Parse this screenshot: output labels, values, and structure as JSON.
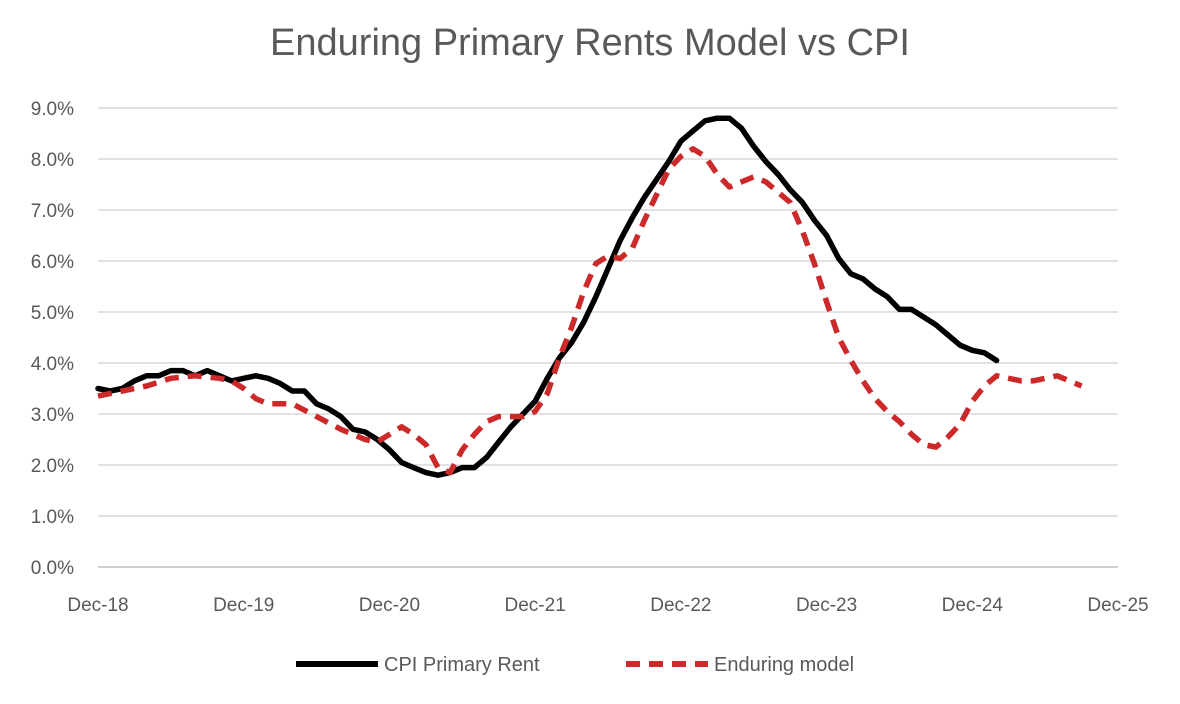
{
  "chart_data": {
    "type": "line",
    "title": "Enduring Primary Rents Model vs CPI",
    "xlabel": "",
    "ylabel": "",
    "x_tick_labels": [
      "Dec-18",
      "Dec-19",
      "Dec-20",
      "Dec-21",
      "Dec-22",
      "Dec-23",
      "Dec-24",
      "Dec-25"
    ],
    "y_tick_labels": [
      "0.0%",
      "1.0%",
      "2.0%",
      "3.0%",
      "4.0%",
      "5.0%",
      "6.0%",
      "7.0%",
      "8.0%",
      "9.0%"
    ],
    "xlim": [
      0,
      84
    ],
    "ylim": [
      0,
      9
    ],
    "grid": "horizontal",
    "legend_position": "bottom",
    "series": [
      {
        "name": "CPI Primary Rent",
        "color": "#000000",
        "style": "solid",
        "points": [
          [
            0,
            3.5
          ],
          [
            1,
            3.45
          ],
          [
            2,
            3.5
          ],
          [
            3,
            3.65
          ],
          [
            4,
            3.75
          ],
          [
            5,
            3.75
          ],
          [
            6,
            3.85
          ],
          [
            7,
            3.85
          ],
          [
            8,
            3.75
          ],
          [
            9,
            3.85
          ],
          [
            10,
            3.75
          ],
          [
            11,
            3.65
          ],
          [
            12,
            3.7
          ],
          [
            13,
            3.75
          ],
          [
            14,
            3.7
          ],
          [
            15,
            3.6
          ],
          [
            16,
            3.45
          ],
          [
            17,
            3.45
          ],
          [
            18,
            3.2
          ],
          [
            19,
            3.1
          ],
          [
            20,
            2.95
          ],
          [
            21,
            2.7
          ],
          [
            22,
            2.65
          ],
          [
            23,
            2.5
          ],
          [
            24,
            2.3
          ],
          [
            25,
            2.05
          ],
          [
            26,
            1.95
          ],
          [
            27,
            1.85
          ],
          [
            28,
            1.8
          ],
          [
            29,
            1.85
          ],
          [
            30,
            1.95
          ],
          [
            31,
            1.95
          ],
          [
            32,
            2.15
          ],
          [
            33,
            2.45
          ],
          [
            34,
            2.75
          ],
          [
            35,
            3.0
          ],
          [
            36,
            3.25
          ],
          [
            37,
            3.7
          ],
          [
            38,
            4.1
          ],
          [
            39,
            4.4
          ],
          [
            40,
            4.8
          ],
          [
            41,
            5.3
          ],
          [
            42,
            5.85
          ],
          [
            43,
            6.4
          ],
          [
            44,
            6.85
          ],
          [
            45,
            7.25
          ],
          [
            46,
            7.6
          ],
          [
            47,
            7.95
          ],
          [
            48,
            8.35
          ],
          [
            49,
            8.55
          ],
          [
            50,
            8.75
          ],
          [
            51,
            8.8
          ],
          [
            52,
            8.8
          ],
          [
            53,
            8.6
          ],
          [
            54,
            8.25
          ],
          [
            55,
            7.95
          ],
          [
            56,
            7.7
          ],
          [
            57,
            7.4
          ],
          [
            58,
            7.15
          ],
          [
            59,
            6.8
          ],
          [
            60,
            6.5
          ],
          [
            61,
            6.05
          ],
          [
            62,
            5.75
          ],
          [
            63,
            5.65
          ],
          [
            64,
            5.45
          ],
          [
            65,
            5.3
          ],
          [
            66,
            5.05
          ],
          [
            67,
            5.05
          ],
          [
            68,
            4.9
          ],
          [
            69,
            4.75
          ],
          [
            70,
            4.55
          ],
          [
            71,
            4.35
          ],
          [
            72,
            4.25
          ],
          [
            73,
            4.2
          ],
          [
            74,
            4.05
          ]
        ]
      },
      {
        "name": "Enduring model",
        "color": "#cc2a2a",
        "style": "dashed",
        "points": [
          [
            0,
            3.35
          ],
          [
            2,
            3.45
          ],
          [
            4,
            3.55
          ],
          [
            6,
            3.7
          ],
          [
            8,
            3.75
          ],
          [
            10,
            3.7
          ],
          [
            11,
            3.65
          ],
          [
            12,
            3.5
          ],
          [
            13,
            3.3
          ],
          [
            14,
            3.2
          ],
          [
            16,
            3.2
          ],
          [
            18,
            2.95
          ],
          [
            20,
            2.7
          ],
          [
            22,
            2.5
          ],
          [
            23,
            2.45
          ],
          [
            24,
            2.6
          ],
          [
            25,
            2.75
          ],
          [
            26,
            2.6
          ],
          [
            27,
            2.4
          ],
          [
            28,
            1.95
          ],
          [
            29,
            1.85
          ],
          [
            30,
            2.3
          ],
          [
            31,
            2.6
          ],
          [
            32,
            2.85
          ],
          [
            33,
            2.95
          ],
          [
            35,
            2.95
          ],
          [
            36,
            3.05
          ],
          [
            37,
            3.4
          ],
          [
            38,
            4.1
          ],
          [
            39,
            4.7
          ],
          [
            40,
            5.4
          ],
          [
            41,
            5.95
          ],
          [
            42,
            6.1
          ],
          [
            43,
            6.05
          ],
          [
            44,
            6.25
          ],
          [
            45,
            6.8
          ],
          [
            46,
            7.3
          ],
          [
            47,
            7.8
          ],
          [
            48,
            8.05
          ],
          [
            49,
            8.2
          ],
          [
            50,
            8.05
          ],
          [
            51,
            7.7
          ],
          [
            52,
            7.45
          ],
          [
            53,
            7.55
          ],
          [
            54,
            7.65
          ],
          [
            55,
            7.55
          ],
          [
            56,
            7.35
          ],
          [
            57,
            7.15
          ],
          [
            58,
            6.6
          ],
          [
            59,
            5.95
          ],
          [
            60,
            5.2
          ],
          [
            61,
            4.5
          ],
          [
            62,
            4.05
          ],
          [
            63,
            3.65
          ],
          [
            64,
            3.3
          ],
          [
            65,
            3.05
          ],
          [
            66,
            2.85
          ],
          [
            67,
            2.6
          ],
          [
            68,
            2.4
          ],
          [
            69,
            2.35
          ],
          [
            70,
            2.55
          ],
          [
            71,
            2.8
          ],
          [
            72,
            3.25
          ],
          [
            73,
            3.55
          ],
          [
            74,
            3.75
          ],
          [
            75,
            3.7
          ],
          [
            76,
            3.65
          ],
          [
            77,
            3.65
          ],
          [
            78,
            3.7
          ],
          [
            79,
            3.75
          ],
          [
            80,
            3.65
          ],
          [
            81,
            3.55
          ]
        ]
      }
    ]
  }
}
